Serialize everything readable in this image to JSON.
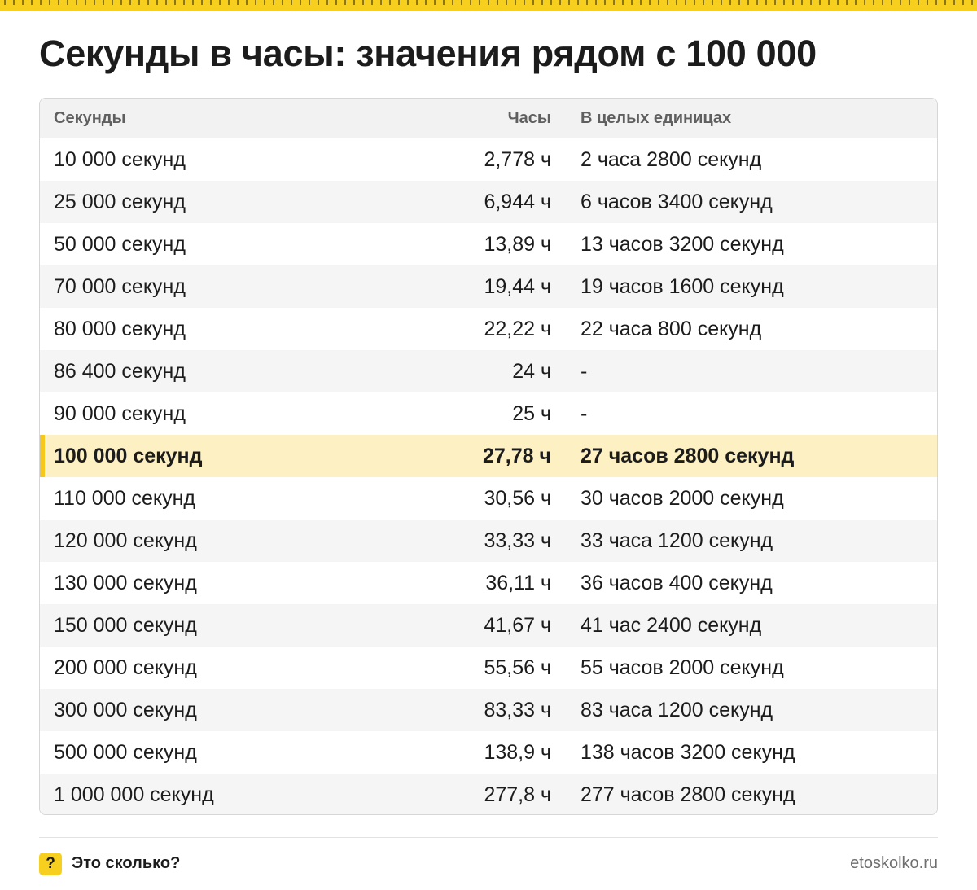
{
  "title": "Секунды в часы: значения рядом с 100 000",
  "colors": {
    "accent": "#f6cf1f",
    "highlight_row": "#fdf1c3"
  },
  "table": {
    "headers": [
      "Секунды",
      "Часы",
      "В целых единицах"
    ],
    "rows": [
      {
        "seconds": "10 000 секунд",
        "hours": "2,778 ч",
        "whole": "2 часа 2800 секунд",
        "highlight": false
      },
      {
        "seconds": "25 000 секунд",
        "hours": "6,944 ч",
        "whole": "6 часов 3400 секунд",
        "highlight": false
      },
      {
        "seconds": "50 000 секунд",
        "hours": "13,89 ч",
        "whole": "13 часов 3200 секунд",
        "highlight": false
      },
      {
        "seconds": "70 000 секунд",
        "hours": "19,44 ч",
        "whole": "19 часов 1600 секунд",
        "highlight": false
      },
      {
        "seconds": "80 000 секунд",
        "hours": "22,22 ч",
        "whole": "22 часа 800 секунд",
        "highlight": false
      },
      {
        "seconds": "86 400 секунд",
        "hours": "24 ч",
        "whole": "-",
        "highlight": false
      },
      {
        "seconds": "90 000 секунд",
        "hours": "25 ч",
        "whole": "-",
        "highlight": false
      },
      {
        "seconds": "100 000 секунд",
        "hours": "27,78 ч",
        "whole": "27 часов 2800 секунд",
        "highlight": true
      },
      {
        "seconds": "110 000 секунд",
        "hours": "30,56 ч",
        "whole": "30 часов 2000 секунд",
        "highlight": false
      },
      {
        "seconds": "120 000 секунд",
        "hours": "33,33 ч",
        "whole": "33 часа 1200 секунд",
        "highlight": false
      },
      {
        "seconds": "130 000 секунд",
        "hours": "36,11 ч",
        "whole": "36 часов 400 секунд",
        "highlight": false
      },
      {
        "seconds": "150 000 секунд",
        "hours": "41,67 ч",
        "whole": "41 час 2400 секунд",
        "highlight": false
      },
      {
        "seconds": "200 000 секунд",
        "hours": "55,56 ч",
        "whole": "55 часов 2000 секунд",
        "highlight": false
      },
      {
        "seconds": "300 000 секунд",
        "hours": "83,33 ч",
        "whole": "83 часа 1200 секунд",
        "highlight": false
      },
      {
        "seconds": "500 000 секунд",
        "hours": "138,9 ч",
        "whole": "138 часов 3200 секунд",
        "highlight": false
      },
      {
        "seconds": "1 000 000 секунд",
        "hours": "277,8 ч",
        "whole": "277 часов 2800 секунд",
        "highlight": false
      }
    ]
  },
  "footer": {
    "icon_glyph": "?",
    "icon_name": "question-mark-icon",
    "brand": "Это сколько?",
    "site": "etoskolko.ru"
  }
}
